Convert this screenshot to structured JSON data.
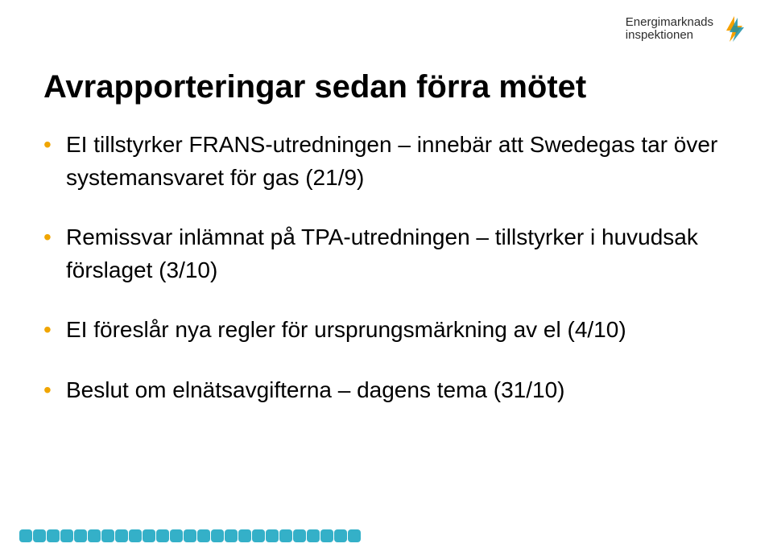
{
  "logo": {
    "line1": "Energimarknads",
    "line2": "inspektionen",
    "colors": {
      "bolt_primary": "#f5a100",
      "bolt_secondary": "#1a8fa6"
    }
  },
  "title": "Avrapporteringar sedan förra mötet",
  "bullets": [
    "EI tillstyrker FRANS-utredningen – innebär att Swedegas tar över systemansvaret för gas (21/9)",
    "Remissvar inlämnat på TPA-utredningen – tillstyrker i huvudsak förslaget (3/10)",
    "EI föreslår nya regler för ursprungsmärkning av el (4/10)",
    "Beslut om elnätsavgifterna – dagens tema (31/10)"
  ],
  "footer": {
    "square_count": 25,
    "square_color": "#34b0c8"
  },
  "colors": {
    "bullet": "#f0a500",
    "text": "#000000",
    "background": "#ffffff"
  }
}
